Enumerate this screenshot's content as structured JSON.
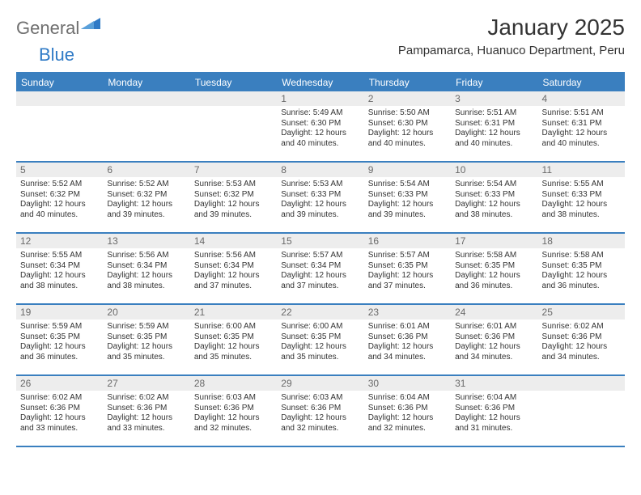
{
  "brand": {
    "text_general": "General",
    "text_blue": "Blue",
    "icon_color": "#2f7ac6"
  },
  "title": {
    "month_year": "January 2025",
    "location": "Pampamarca, Huanuco Department, Peru"
  },
  "colors": {
    "header_bar": "#3a7fbf",
    "row_divider": "#3a7fbf",
    "daynum_bg": "#ededed",
    "daynum_text": "#6a6a6a",
    "body_text": "#333333",
    "page_bg": "#ffffff"
  },
  "weekdays": [
    "Sunday",
    "Monday",
    "Tuesday",
    "Wednesday",
    "Thursday",
    "Friday",
    "Saturday"
  ],
  "weeks": [
    [
      {
        "day": "",
        "sunrise": "",
        "sunset": "",
        "daylight": ""
      },
      {
        "day": "",
        "sunrise": "",
        "sunset": "",
        "daylight": ""
      },
      {
        "day": "",
        "sunrise": "",
        "sunset": "",
        "daylight": ""
      },
      {
        "day": "1",
        "sunrise": "5:49 AM",
        "sunset": "6:30 PM",
        "daylight": "12 hours and 40 minutes."
      },
      {
        "day": "2",
        "sunrise": "5:50 AM",
        "sunset": "6:30 PM",
        "daylight": "12 hours and 40 minutes."
      },
      {
        "day": "3",
        "sunrise": "5:51 AM",
        "sunset": "6:31 PM",
        "daylight": "12 hours and 40 minutes."
      },
      {
        "day": "4",
        "sunrise": "5:51 AM",
        "sunset": "6:31 PM",
        "daylight": "12 hours and 40 minutes."
      }
    ],
    [
      {
        "day": "5",
        "sunrise": "5:52 AM",
        "sunset": "6:32 PM",
        "daylight": "12 hours and 40 minutes."
      },
      {
        "day": "6",
        "sunrise": "5:52 AM",
        "sunset": "6:32 PM",
        "daylight": "12 hours and 39 minutes."
      },
      {
        "day": "7",
        "sunrise": "5:53 AM",
        "sunset": "6:32 PM",
        "daylight": "12 hours and 39 minutes."
      },
      {
        "day": "8",
        "sunrise": "5:53 AM",
        "sunset": "6:33 PM",
        "daylight": "12 hours and 39 minutes."
      },
      {
        "day": "9",
        "sunrise": "5:54 AM",
        "sunset": "6:33 PM",
        "daylight": "12 hours and 39 minutes."
      },
      {
        "day": "10",
        "sunrise": "5:54 AM",
        "sunset": "6:33 PM",
        "daylight": "12 hours and 38 minutes."
      },
      {
        "day": "11",
        "sunrise": "5:55 AM",
        "sunset": "6:33 PM",
        "daylight": "12 hours and 38 minutes."
      }
    ],
    [
      {
        "day": "12",
        "sunrise": "5:55 AM",
        "sunset": "6:34 PM",
        "daylight": "12 hours and 38 minutes."
      },
      {
        "day": "13",
        "sunrise": "5:56 AM",
        "sunset": "6:34 PM",
        "daylight": "12 hours and 38 minutes."
      },
      {
        "day": "14",
        "sunrise": "5:56 AM",
        "sunset": "6:34 PM",
        "daylight": "12 hours and 37 minutes."
      },
      {
        "day": "15",
        "sunrise": "5:57 AM",
        "sunset": "6:34 PM",
        "daylight": "12 hours and 37 minutes."
      },
      {
        "day": "16",
        "sunrise": "5:57 AM",
        "sunset": "6:35 PM",
        "daylight": "12 hours and 37 minutes."
      },
      {
        "day": "17",
        "sunrise": "5:58 AM",
        "sunset": "6:35 PM",
        "daylight": "12 hours and 36 minutes."
      },
      {
        "day": "18",
        "sunrise": "5:58 AM",
        "sunset": "6:35 PM",
        "daylight": "12 hours and 36 minutes."
      }
    ],
    [
      {
        "day": "19",
        "sunrise": "5:59 AM",
        "sunset": "6:35 PM",
        "daylight": "12 hours and 36 minutes."
      },
      {
        "day": "20",
        "sunrise": "5:59 AM",
        "sunset": "6:35 PM",
        "daylight": "12 hours and 35 minutes."
      },
      {
        "day": "21",
        "sunrise": "6:00 AM",
        "sunset": "6:35 PM",
        "daylight": "12 hours and 35 minutes."
      },
      {
        "day": "22",
        "sunrise": "6:00 AM",
        "sunset": "6:35 PM",
        "daylight": "12 hours and 35 minutes."
      },
      {
        "day": "23",
        "sunrise": "6:01 AM",
        "sunset": "6:36 PM",
        "daylight": "12 hours and 34 minutes."
      },
      {
        "day": "24",
        "sunrise": "6:01 AM",
        "sunset": "6:36 PM",
        "daylight": "12 hours and 34 minutes."
      },
      {
        "day": "25",
        "sunrise": "6:02 AM",
        "sunset": "6:36 PM",
        "daylight": "12 hours and 34 minutes."
      }
    ],
    [
      {
        "day": "26",
        "sunrise": "6:02 AM",
        "sunset": "6:36 PM",
        "daylight": "12 hours and 33 minutes."
      },
      {
        "day": "27",
        "sunrise": "6:02 AM",
        "sunset": "6:36 PM",
        "daylight": "12 hours and 33 minutes."
      },
      {
        "day": "28",
        "sunrise": "6:03 AM",
        "sunset": "6:36 PM",
        "daylight": "12 hours and 32 minutes."
      },
      {
        "day": "29",
        "sunrise": "6:03 AM",
        "sunset": "6:36 PM",
        "daylight": "12 hours and 32 minutes."
      },
      {
        "day": "30",
        "sunrise": "6:04 AM",
        "sunset": "6:36 PM",
        "daylight": "12 hours and 32 minutes."
      },
      {
        "day": "31",
        "sunrise": "6:04 AM",
        "sunset": "6:36 PM",
        "daylight": "12 hours and 31 minutes."
      },
      {
        "day": "",
        "sunrise": "",
        "sunset": "",
        "daylight": ""
      }
    ]
  ],
  "labels": {
    "sunrise": "Sunrise:",
    "sunset": "Sunset:",
    "daylight": "Daylight:"
  }
}
